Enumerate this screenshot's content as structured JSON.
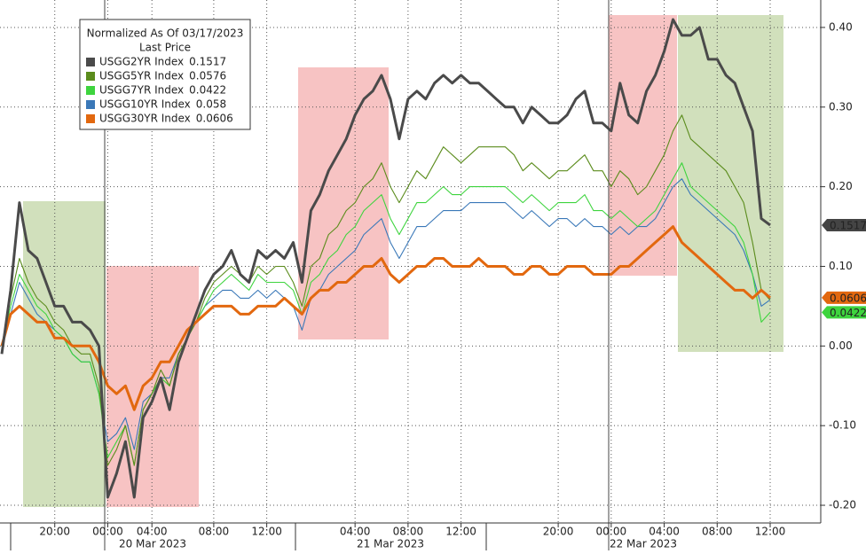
{
  "chart_data": {
    "type": "line",
    "legend_title": "Normalized As Of 03/17/2023",
    "legend_subtitle": "Last Price",
    "categories": [
      null,
      null,
      null,
      null,
      null,
      null,
      "20:00",
      null,
      null,
      null,
      null,
      null,
      "00:00",
      null,
      null,
      null,
      null,
      "04:00",
      null,
      null,
      null,
      null,
      null,
      null,
      "08:00",
      null,
      null,
      null,
      null,
      null,
      "12:00",
      null,
      null,
      null,
      null,
      null,
      null,
      null,
      null,
      null,
      "04:00",
      null,
      null,
      null,
      null,
      null,
      "08:00",
      null,
      null,
      null,
      null,
      null,
      "12:00",
      null,
      null,
      null,
      null,
      null,
      null,
      null,
      null,
      null,
      null,
      "20:00",
      null,
      null,
      null,
      null,
      null,
      "00:00",
      null,
      null,
      null,
      null,
      null,
      "04:00",
      null,
      null,
      null,
      null,
      null,
      "08:00",
      null,
      null,
      null,
      null,
      null,
      "12:00"
    ],
    "dates": [
      "20 Mar 2023",
      "21 Mar 2023",
      "22 Mar 2023"
    ],
    "ylim": [
      -0.22,
      0.43
    ],
    "yticks": [
      {
        "value": 0.4,
        "label": "0.40"
      },
      {
        "value": 0.3,
        "label": "0.30"
      },
      {
        "value": 0.2,
        "label": "0.20"
      },
      {
        "value": 0.1,
        "label": "0.10"
      },
      {
        "value": 0,
        "label": "0.00"
      },
      {
        "value": -0.1,
        "label": "-0.10"
      },
      {
        "value": -0.2,
        "label": "-0.20"
      }
    ],
    "grid": true,
    "series": [
      {
        "name": "USGG2YR Index",
        "color": "#4a4a4a",
        "values": [
          -0.01,
          0.07,
          0.18,
          0.12,
          0.11,
          0.08,
          0.05,
          0.05,
          0.03,
          0.03,
          0.02,
          0.0,
          -0.19,
          -0.16,
          -0.12,
          -0.19,
          -0.09,
          -0.07,
          -0.04,
          -0.08,
          -0.02,
          0.01,
          0.04,
          0.07,
          0.09,
          0.1,
          0.12,
          0.09,
          0.08,
          0.12,
          0.11,
          0.12,
          0.11,
          0.13,
          0.08,
          0.17,
          0.19,
          0.22,
          0.24,
          0.26,
          0.29,
          0.31,
          0.32,
          0.34,
          0.31,
          0.26,
          0.31,
          0.32,
          0.31,
          0.33,
          0.34,
          0.33,
          0.34,
          0.33,
          0.33,
          0.32,
          0.31,
          0.3,
          0.3,
          0.28,
          0.3,
          0.29,
          0.28,
          0.28,
          0.29,
          0.31,
          0.32,
          0.28,
          0.28,
          0.27,
          0.33,
          0.29,
          0.28,
          0.32,
          0.34,
          0.37,
          0.41,
          0.39,
          0.39,
          0.4,
          0.36,
          0.36,
          0.34,
          0.33,
          0.3,
          0.27,
          0.16,
          0.1517
        ]
      },
      {
        "name": "USGG5YR Index",
        "color": "#5b8c1c",
        "values": [
          0.0,
          0.06,
          0.11,
          0.08,
          0.06,
          0.05,
          0.03,
          0.02,
          0.0,
          -0.01,
          -0.01,
          -0.05,
          -0.15,
          -0.13,
          -0.1,
          -0.15,
          -0.08,
          -0.06,
          -0.03,
          -0.05,
          -0.01,
          0.01,
          0.03,
          0.06,
          0.08,
          0.09,
          0.1,
          0.09,
          0.08,
          0.1,
          0.09,
          0.1,
          0.1,
          0.08,
          0.05,
          0.1,
          0.11,
          0.14,
          0.15,
          0.17,
          0.18,
          0.2,
          0.21,
          0.23,
          0.2,
          0.18,
          0.2,
          0.22,
          0.21,
          0.23,
          0.25,
          0.24,
          0.23,
          0.24,
          0.25,
          0.25,
          0.25,
          0.25,
          0.24,
          0.22,
          0.23,
          0.22,
          0.21,
          0.22,
          0.22,
          0.23,
          0.24,
          0.22,
          0.22,
          0.2,
          0.22,
          0.21,
          0.19,
          0.2,
          0.22,
          0.24,
          0.27,
          0.29,
          0.26,
          0.25,
          0.24,
          0.23,
          0.22,
          0.2,
          0.18,
          0.13,
          0.07,
          0.0576
        ]
      },
      {
        "name": "USGG7YR Index",
        "color": "#3ed43e",
        "values": [
          0.0,
          0.05,
          0.09,
          0.07,
          0.05,
          0.04,
          0.02,
          0.01,
          -0.01,
          -0.02,
          -0.02,
          -0.06,
          -0.14,
          -0.12,
          -0.1,
          -0.15,
          -0.08,
          -0.06,
          -0.04,
          -0.05,
          -0.01,
          0.01,
          0.03,
          0.05,
          0.07,
          0.08,
          0.09,
          0.08,
          0.07,
          0.09,
          0.08,
          0.08,
          0.08,
          0.07,
          0.04,
          0.08,
          0.09,
          0.11,
          0.12,
          0.14,
          0.15,
          0.17,
          0.18,
          0.19,
          0.16,
          0.14,
          0.16,
          0.18,
          0.18,
          0.19,
          0.2,
          0.19,
          0.19,
          0.2,
          0.2,
          0.2,
          0.2,
          0.2,
          0.19,
          0.18,
          0.19,
          0.18,
          0.17,
          0.18,
          0.18,
          0.18,
          0.19,
          0.17,
          0.17,
          0.16,
          0.17,
          0.16,
          0.15,
          0.16,
          0.17,
          0.19,
          0.21,
          0.23,
          0.2,
          0.19,
          0.18,
          0.17,
          0.16,
          0.15,
          0.13,
          0.09,
          0.03,
          0.0422
        ]
      },
      {
        "name": "USGG10YR Index",
        "color": "#3a78b8",
        "values": [
          0.0,
          0.04,
          0.08,
          0.06,
          0.04,
          0.03,
          0.02,
          0.01,
          -0.01,
          -0.02,
          -0.02,
          -0.06,
          -0.12,
          -0.11,
          -0.09,
          -0.13,
          -0.07,
          -0.06,
          -0.04,
          -0.04,
          -0.01,
          0.01,
          0.03,
          0.05,
          0.06,
          0.07,
          0.07,
          0.06,
          0.06,
          0.07,
          0.06,
          0.07,
          0.06,
          0.05,
          0.02,
          0.06,
          0.07,
          0.09,
          0.1,
          0.11,
          0.12,
          0.14,
          0.15,
          0.16,
          0.13,
          0.11,
          0.13,
          0.15,
          0.15,
          0.16,
          0.17,
          0.17,
          0.17,
          0.18,
          0.18,
          0.18,
          0.18,
          0.18,
          0.17,
          0.16,
          0.17,
          0.16,
          0.15,
          0.16,
          0.16,
          0.15,
          0.16,
          0.15,
          0.15,
          0.14,
          0.15,
          0.14,
          0.15,
          0.15,
          0.16,
          0.18,
          0.2,
          0.21,
          0.19,
          0.18,
          0.17,
          0.16,
          0.15,
          0.14,
          0.12,
          0.09,
          0.05,
          0.058
        ]
      },
      {
        "name": "USGG30YR Index",
        "color": "#e2680f",
        "values": [
          0.0,
          0.04,
          0.05,
          0.04,
          0.03,
          0.03,
          0.01,
          0.01,
          0.0,
          0.0,
          0.0,
          -0.02,
          -0.05,
          -0.06,
          -0.05,
          -0.08,
          -0.05,
          -0.04,
          -0.02,
          -0.02,
          0.0,
          0.02,
          0.03,
          0.04,
          0.05,
          0.05,
          0.05,
          0.04,
          0.04,
          0.05,
          0.05,
          0.05,
          0.06,
          0.05,
          0.04,
          0.06,
          0.07,
          0.07,
          0.08,
          0.08,
          0.09,
          0.1,
          0.1,
          0.11,
          0.09,
          0.08,
          0.09,
          0.1,
          0.1,
          0.11,
          0.11,
          0.1,
          0.1,
          0.1,
          0.11,
          0.1,
          0.1,
          0.1,
          0.09,
          0.09,
          0.1,
          0.1,
          0.09,
          0.09,
          0.1,
          0.1,
          0.1,
          0.09,
          0.09,
          0.09,
          0.1,
          0.1,
          0.11,
          0.12,
          0.13,
          0.14,
          0.15,
          0.13,
          0.12,
          0.11,
          0.1,
          0.09,
          0.08,
          0.07,
          0.07,
          0.06,
          0.07,
          0.0606
        ]
      }
    ]
  }
}
